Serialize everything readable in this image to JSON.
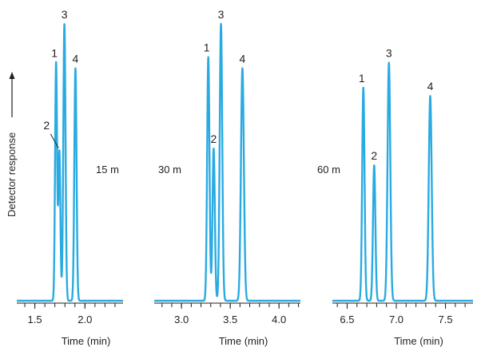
{
  "ylabel": "Detector response",
  "trace_color": "#29abe2",
  "chart_data": [
    {
      "type": "line",
      "panel": "15 m",
      "length_label": "15 m",
      "xlabel": "Time (min)",
      "xlim": [
        1.32,
        2.38
      ],
      "xticks": [
        1.5,
        2.0
      ],
      "tick_labels": [
        "1.5",
        "2.0"
      ],
      "minor_step": 0.1,
      "peaks": [
        {
          "label": "1",
          "time": 1.712,
          "height": 0.86,
          "width": 0.01
        },
        {
          "label": "2",
          "time": 1.745,
          "height": 0.54,
          "width": 0.01
        },
        {
          "label": "3",
          "time": 1.795,
          "height": 1.0,
          "width": 0.011
        },
        {
          "label": "4",
          "time": 1.905,
          "height": 0.84,
          "width": 0.011
        }
      ]
    },
    {
      "type": "line",
      "panel": "30 m",
      "length_label": "30 m",
      "xlabel": "Time (min)",
      "xlim": [
        2.72,
        4.22
      ],
      "xticks": [
        3.0,
        3.5,
        4.0
      ],
      "tick_labels": [
        "3.0",
        "3.5",
        "4.0"
      ],
      "minor_step": 0.1,
      "peaks": [
        {
          "label": "1",
          "time": 3.275,
          "height": 0.88,
          "width": 0.012
        },
        {
          "label": "2",
          "time": 3.33,
          "height": 0.55,
          "width": 0.012
        },
        {
          "label": "3",
          "time": 3.405,
          "height": 1.0,
          "width": 0.013
        },
        {
          "label": "4",
          "time": 3.625,
          "height": 0.84,
          "width": 0.015
        }
      ]
    },
    {
      "type": "line",
      "panel": "60 m",
      "length_label": "60 m",
      "xlabel": "Time (min)",
      "xlim": [
        6.35,
        7.78
      ],
      "xticks": [
        6.5,
        7.0,
        7.5
      ],
      "tick_labels": [
        "6.5",
        "7.0",
        "7.5"
      ],
      "minor_step": 0.1,
      "peaks": [
        {
          "label": "1",
          "time": 6.665,
          "height": 0.77,
          "width": 0.012
        },
        {
          "label": "2",
          "time": 6.775,
          "height": 0.49,
          "width": 0.012
        },
        {
          "label": "3",
          "time": 6.925,
          "height": 0.86,
          "width": 0.014
        },
        {
          "label": "4",
          "time": 7.345,
          "height": 0.74,
          "width": 0.015
        }
      ]
    }
  ]
}
